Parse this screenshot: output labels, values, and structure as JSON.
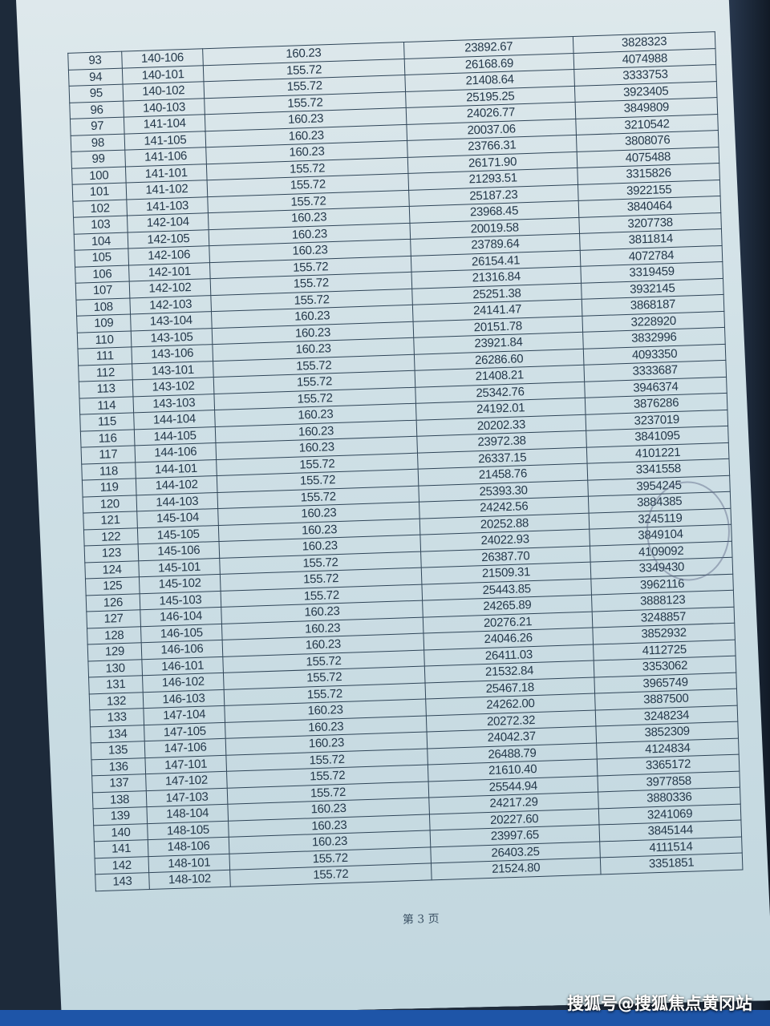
{
  "table": {
    "rows": [
      [
        "93",
        "140-106",
        "160.23",
        "23892.67",
        "3828323"
      ],
      [
        "94",
        "140-101",
        "155.72",
        "26168.69",
        "4074988"
      ],
      [
        "95",
        "140-102",
        "155.72",
        "21408.64",
        "3333753"
      ],
      [
        "96",
        "140-103",
        "155.72",
        "25195.25",
        "3923405"
      ],
      [
        "97",
        "141-104",
        "160.23",
        "24026.77",
        "3849809"
      ],
      [
        "98",
        "141-105",
        "160.23",
        "20037.06",
        "3210542"
      ],
      [
        "99",
        "141-106",
        "160.23",
        "23766.31",
        "3808076"
      ],
      [
        "100",
        "141-101",
        "155.72",
        "26171.90",
        "4075488"
      ],
      [
        "101",
        "141-102",
        "155.72",
        "21293.51",
        "3315826"
      ],
      [
        "102",
        "141-103",
        "155.72",
        "25187.23",
        "3922155"
      ],
      [
        "103",
        "142-104",
        "160.23",
        "23968.45",
        "3840464"
      ],
      [
        "104",
        "142-105",
        "160.23",
        "20019.58",
        "3207738"
      ],
      [
        "105",
        "142-106",
        "160.23",
        "23789.64",
        "3811814"
      ],
      [
        "106",
        "142-101",
        "155.72",
        "26154.41",
        "4072784"
      ],
      [
        "107",
        "142-102",
        "155.72",
        "21316.84",
        "3319459"
      ],
      [
        "108",
        "142-103",
        "155.72",
        "25251.38",
        "3932145"
      ],
      [
        "109",
        "143-104",
        "160.23",
        "24141.47",
        "3868187"
      ],
      [
        "110",
        "143-105",
        "160.23",
        "20151.78",
        "3228920"
      ],
      [
        "111",
        "143-106",
        "160.23",
        "23921.84",
        "3832996"
      ],
      [
        "112",
        "143-101",
        "155.72",
        "26286.60",
        "4093350"
      ],
      [
        "113",
        "143-102",
        "155.72",
        "21408.21",
        "3333687"
      ],
      [
        "114",
        "143-103",
        "155.72",
        "25342.76",
        "3946374"
      ],
      [
        "115",
        "144-104",
        "160.23",
        "24192.01",
        "3876286"
      ],
      [
        "116",
        "144-105",
        "160.23",
        "20202.33",
        "3237019"
      ],
      [
        "117",
        "144-106",
        "160.23",
        "23972.38",
        "3841095"
      ],
      [
        "118",
        "144-101",
        "155.72",
        "26337.15",
        "4101221"
      ],
      [
        "119",
        "144-102",
        "155.72",
        "21458.76",
        "3341558"
      ],
      [
        "120",
        "144-103",
        "155.72",
        "25393.30",
        "3954245"
      ],
      [
        "121",
        "145-104",
        "160.23",
        "24242.56",
        "3884385"
      ],
      [
        "122",
        "145-105",
        "160.23",
        "20252.88",
        "3245119"
      ],
      [
        "123",
        "145-106",
        "160.23",
        "24022.93",
        "3849104"
      ],
      [
        "124",
        "145-101",
        "155.72",
        "26387.70",
        "4109092"
      ],
      [
        "125",
        "145-102",
        "155.72",
        "21509.31",
        "3349430"
      ],
      [
        "126",
        "145-103",
        "155.72",
        "25443.85",
        "3962116"
      ],
      [
        "127",
        "146-104",
        "160.23",
        "24265.89",
        "3888123"
      ],
      [
        "128",
        "146-105",
        "160.23",
        "20276.21",
        "3248857"
      ],
      [
        "129",
        "146-106",
        "160.23",
        "24046.26",
        "3852932"
      ],
      [
        "130",
        "146-101",
        "155.72",
        "26411.03",
        "4112725"
      ],
      [
        "131",
        "146-102",
        "155.72",
        "21532.84",
        "3353062"
      ],
      [
        "132",
        "146-103",
        "155.72",
        "25467.18",
        "3965749"
      ],
      [
        "133",
        "147-104",
        "160.23",
        "24262.00",
        "3887500"
      ],
      [
        "134",
        "147-105",
        "160.23",
        "20272.32",
        "3248234"
      ],
      [
        "135",
        "147-106",
        "160.23",
        "24042.37",
        "3852309"
      ],
      [
        "136",
        "147-101",
        "155.72",
        "26488.79",
        "4124834"
      ],
      [
        "137",
        "147-102",
        "155.72",
        "21610.40",
        "3365172"
      ],
      [
        "138",
        "147-103",
        "155.72",
        "25544.94",
        "3977858"
      ],
      [
        "139",
        "148-104",
        "160.23",
        "24217.29",
        "3880336"
      ],
      [
        "140",
        "148-105",
        "160.23",
        "20227.60",
        "3241069"
      ],
      [
        "141",
        "148-106",
        "160.23",
        "23997.65",
        "3845144"
      ],
      [
        "142",
        "148-101",
        "155.72",
        "26403.25",
        "4111514"
      ],
      [
        "143",
        "148-102",
        "155.72",
        "21524.80",
        "3351851"
      ]
    ]
  },
  "footer": {
    "page_label": "第 3 页"
  },
  "watermark": "搜狐号@搜狐焦点黄冈站",
  "colors": {
    "paper": "#cfe0e6",
    "ink": "#24384a",
    "background": "#1d2a3a"
  }
}
